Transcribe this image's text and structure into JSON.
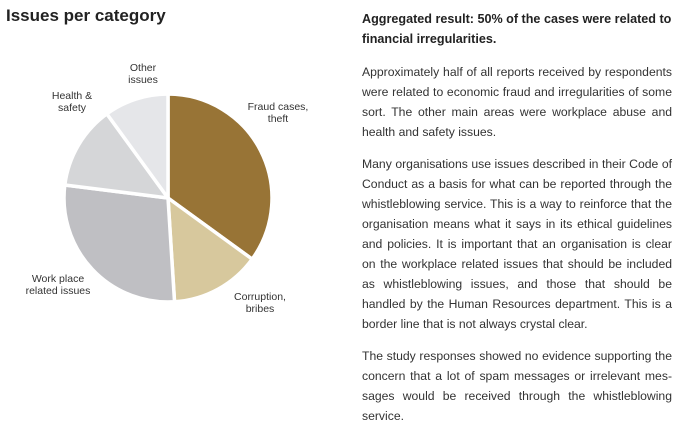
{
  "chart_data": {
    "type": "pie",
    "title": "Issues per category",
    "unit": "percent",
    "slices": [
      {
        "label_lines": [
          "Fraud cases,",
          "theft"
        ],
        "value": 35,
        "color": "#987436"
      },
      {
        "label_lines": [
          "Corruption,",
          "bribes"
        ],
        "value": 14,
        "color": "#d7c89d"
      },
      {
        "label_lines": [
          "Work place",
          "related issues"
        ],
        "value": 28,
        "color": "#bfbfc3"
      },
      {
        "label_lines": [
          "Health &",
          "safety"
        ],
        "value": 13,
        "color": "#d5d6d8"
      },
      {
        "label_lines": [
          "Other",
          "issues"
        ],
        "value": 10,
        "color": "#e5e6e9"
      }
    ],
    "start": "top",
    "direction": "clockwise"
  },
  "text": {
    "heading": "Aggregated result: 50% of the cases were related to financial irregularities.",
    "paragraphs": [
      "Approximately half of all reports received by respon­dents were related to economic fraud and irregularities of some sort. The other main areas were workplace abuse and health and safety issues.",
      "Many organisations use issues described in their Code of Conduct as a basis for what can be reported through the whistleblowing service. This is a way to reinforce that the organisation means what it says in its ethical guideli­nes and policies. It is important that an organisation is clear on the workplace related issues that should be in­cluded as whistleblowing issues, and those that should be handled by the Human Resources department. This is a border line that is not always crystal clear.",
      "The study responses showed no evidence supporting the concern that a lot of spam messages or irrelevant mes­sages would be received through the whistleblowing service."
    ]
  }
}
